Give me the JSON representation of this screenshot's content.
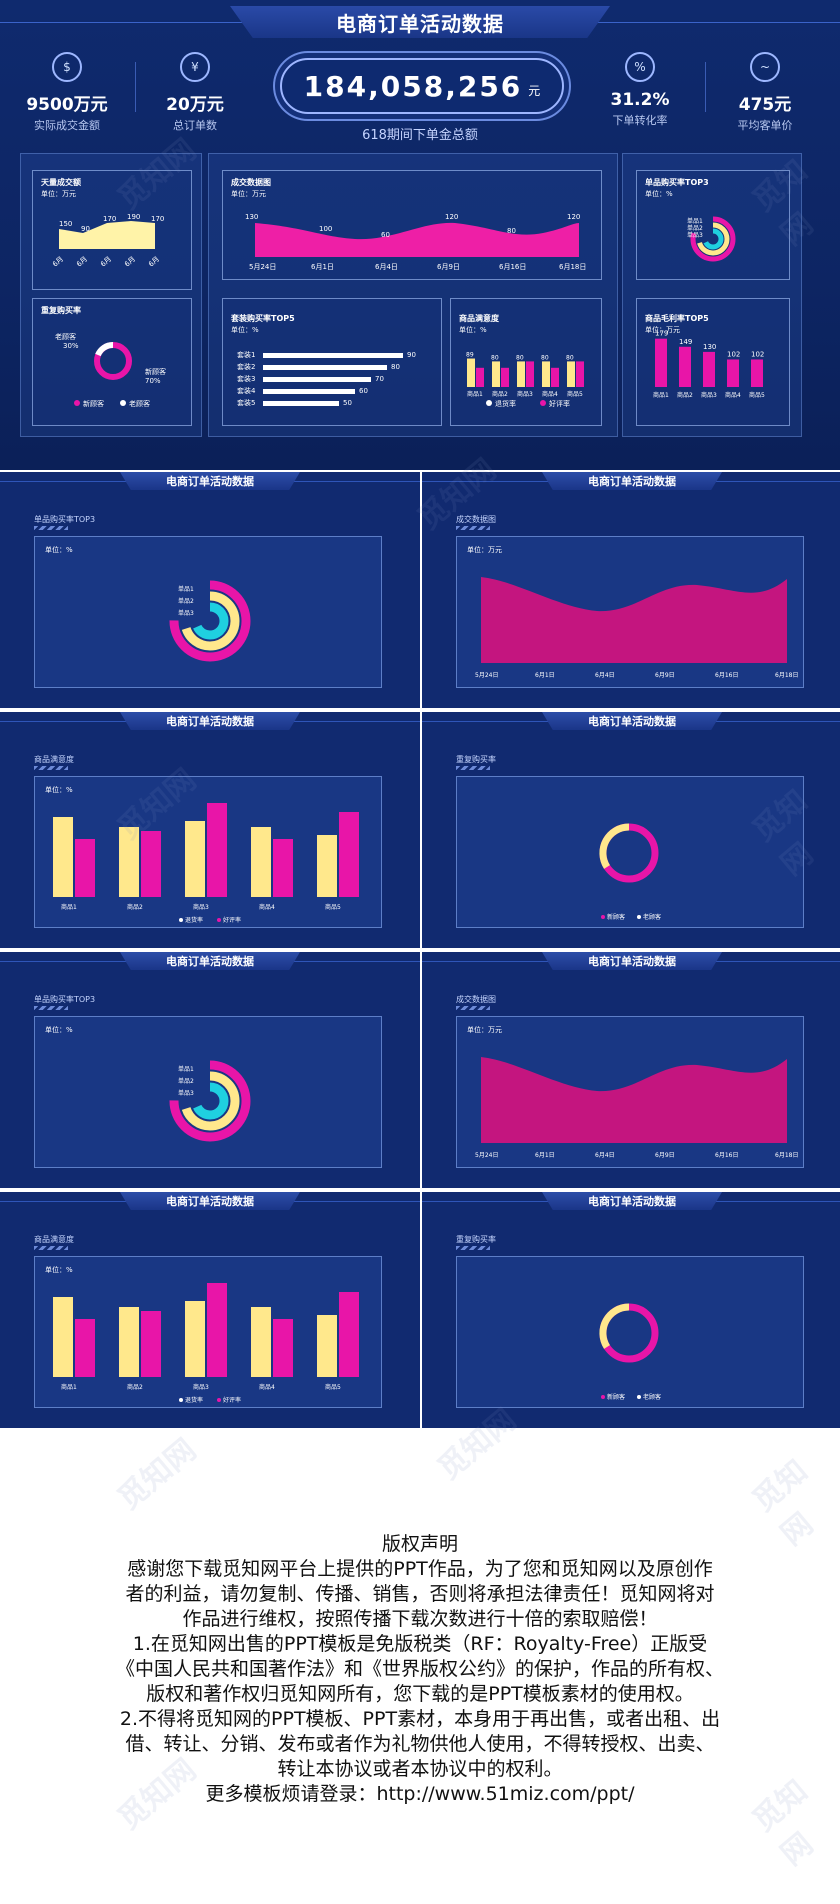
{
  "header": {
    "title": "电商订单活动数据"
  },
  "kpis_left": [
    {
      "icon": "money-bag-icon",
      "value": "9500万元",
      "label": "实际成交金额"
    },
    {
      "icon": "order-icon",
      "value": "20万元",
      "label": "总订单数"
    }
  ],
  "kpis_right": [
    {
      "icon": "conversion-icon",
      "value": "31.2%",
      "label": "下单转化率"
    },
    {
      "icon": "price-icon",
      "value": "475元",
      "label": "平均客单价"
    }
  ],
  "total": {
    "value": "184,058,256",
    "unit": "元",
    "label": "618期间下单金总额"
  },
  "panels": {
    "daily": {
      "title": "天量成交额",
      "unit": "单位：万元",
      "values": [
        "150",
        "90",
        "170",
        "190",
        "170"
      ],
      "ticks": [
        "6月",
        "6月",
        "6月",
        "6月",
        "6月"
      ]
    },
    "repeat": {
      "title": "重复购买率",
      "old": "老顾客\n30%",
      "old_label": "老顾客",
      "old_pct": "30%",
      "new_label": "新顾客",
      "new_pct": "70%",
      "legend": [
        "新顾客",
        "老顾客"
      ]
    },
    "trend": {
      "title": "成交数据图",
      "unit": "单位：万元",
      "values": [
        "130",
        "100",
        "60",
        "120",
        "80",
        "120"
      ],
      "x": [
        "5月24日",
        "6月1日",
        "6月4日",
        "6月9日",
        "6月16日",
        "6月18日"
      ]
    },
    "combo": {
      "title": "套装购买率TOP5",
      "unit": "单位：%",
      "rows": [
        {
          "name": "套装1",
          "value": "90"
        },
        {
          "name": "套装2",
          "value": "80"
        },
        {
          "name": "套装3",
          "value": "70"
        },
        {
          "name": "套装4",
          "value": "60"
        },
        {
          "name": "套装5",
          "value": "50"
        }
      ]
    },
    "satisfaction": {
      "title": "商品满意度",
      "unit": "单位：%",
      "labels": [
        "商品1",
        "商品2",
        "商品3",
        "商品4",
        "商品5"
      ],
      "values_a": [
        "89",
        "80",
        "80",
        "80",
        "80"
      ],
      "values_b": [
        "60",
        "60",
        "80",
        "60",
        "80"
      ],
      "legend": [
        "退货率",
        "好评率"
      ]
    },
    "single_top": {
      "title": "单品购买率TOP3",
      "unit": "单位：%",
      "items": [
        "单品1",
        "单品2",
        "单品3"
      ]
    },
    "margin": {
      "title": "商品毛利率TOP5",
      "unit": "单位：万元",
      "labels": [
        "商品1",
        "商品2",
        "商品3",
        "商品4",
        "商品5"
      ],
      "values": [
        "179",
        "149",
        "130",
        "102",
        "102"
      ]
    }
  },
  "slides": [
    {
      "header": "电商订单活动数据",
      "title": "单品购买率TOP3",
      "unit": "单位：%",
      "items": [
        "单品1",
        "单品2",
        "单品3"
      ]
    },
    {
      "header": "电商订单活动数据",
      "title": "成交数据图",
      "unit": "单位：万元",
      "x": [
        "5月24日",
        "6月1日",
        "6月4日",
        "6月9日",
        "6月16日",
        "6月18日"
      ]
    },
    {
      "header": "电商订单活动数据",
      "title": "商品满意度",
      "unit": "单位：%",
      "labels": [
        "商品1",
        "商品2",
        "商品3",
        "商品4",
        "商品5"
      ],
      "legend": [
        "退货率",
        "好评率"
      ]
    },
    {
      "header": "电商订单活动数据",
      "title": "重复购买率",
      "legend": [
        "新顾客",
        "老顾客"
      ]
    },
    {
      "header": "电商订单活动数据",
      "title": "单品购买率TOP3",
      "unit": "单位：%",
      "items": [
        "单品1",
        "单品2",
        "单品3"
      ]
    },
    {
      "header": "电商订单活动数据",
      "title": "成交数据图",
      "unit": "单位：万元",
      "x": [
        "5月24日",
        "6月1日",
        "6月4日",
        "6月9日",
        "6月16日",
        "6月18日"
      ]
    },
    {
      "header": "电商订单活动数据",
      "title": "商品满意度",
      "unit": "单位：%",
      "labels": [
        "商品1",
        "商品2",
        "商品3",
        "商品4",
        "商品5"
      ],
      "legend": [
        "退货率",
        "好评率"
      ]
    },
    {
      "header": "电商订单活动数据",
      "title": "重复购买率",
      "legend": [
        "新顾客",
        "老顾客"
      ]
    }
  ],
  "copyright": {
    "title": "版权声明",
    "lines": [
      "感谢您下载觅知网平台上提供的PPT作品，为了您和觅知网以及原创作",
      "者的利益，请勿复制、传播、销售，否则将承担法律责任！觅知网将对",
      "作品进行维权，按照传播下载次数进行十倍的索取赔偿！",
      "1.在觅知网出售的PPT模板是免版税类（RF：Royalty-Free）正版受",
      "《中国人民共和国著作法》和《世界版权公约》的保护，作品的所有权、",
      "版权和著作权归觅知网所有，您下载的是PPT模板素材的使用权。",
      "2.不得将觅知网的PPT模板、PPT素材，本身用于再出售，或者出租、出",
      "借、转让、分销、发布或者作为礼物供他人使用，不得转授权、出卖、",
      "转让本协议或者本协议中的权利。",
      "更多模板烦请登录：http://www.51miz.com/ppt/"
    ]
  },
  "watermark": "觅知网",
  "colors": {
    "bg": "#0f2a6e",
    "magenta": "#e6149a",
    "yellow": "#ffe88c",
    "cyan": "#1fd0e0",
    "pink": "#ff2ea8"
  }
}
